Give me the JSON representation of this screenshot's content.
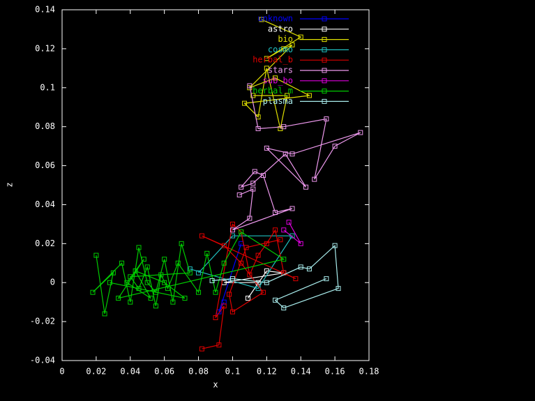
{
  "chart_data": {
    "type": "line",
    "xlabel": "x",
    "ylabel": "z",
    "xlim": [
      0,
      0.18
    ],
    "xticks": [
      0,
      0.02,
      0.04,
      0.06,
      0.08,
      0.1,
      0.12,
      0.14,
      0.16,
      0.18
    ],
    "ylim": [
      -0.04,
      0.14
    ],
    "yticks": [
      -0.04,
      -0.02,
      0,
      0.02,
      0.04,
      0.06,
      0.08,
      0.1,
      0.12,
      0.14
    ],
    "grid": false,
    "legend": "top-right",
    "series": [
      {
        "name": "unknown",
        "color": "#0000ff",
        "x": [
          0.095,
          0.092,
          0.105
        ],
        "values": [
          -0.01,
          -0.015,
          0.02
        ]
      },
      {
        "name": "astro",
        "color": "#ffffff",
        "x": [
          0.109,
          0.12,
          0.13,
          0.095,
          0.115
        ],
        "values": [
          -0.008,
          0.006,
          0.005,
          0.0,
          0.0
        ]
      },
      {
        "name": "bio",
        "color": "#e0e000",
        "x": [
          0.117,
          0.14,
          0.12,
          0.13,
          0.135,
          0.11,
          0.125,
          0.145,
          0.107,
          0.115,
          0.12,
          0.128,
          0.132,
          0.112
        ],
        "values": [
          0.135,
          0.126,
          0.115,
          0.12,
          0.122,
          0.1,
          0.105,
          0.096,
          0.092,
          0.085,
          0.11,
          0.079,
          0.096,
          0.096
        ]
      },
      {
        "name": "cosmo",
        "color": "#20c0c0",
        "x": [
          0.08,
          0.1,
          0.135,
          0.115,
          0.075
        ],
        "values": [
          0.005,
          0.024,
          0.024,
          -0.003,
          0.007
        ]
      },
      {
        "name": "herbal_b",
        "color": "#e00000",
        "x": [
          0.082,
          0.092,
          0.095,
          0.09,
          0.1,
          0.105,
          0.11,
          0.115,
          0.12,
          0.125,
          0.13,
          0.137,
          0.082,
          0.095,
          0.105,
          0.118,
          0.1,
          0.098,
          0.108,
          0.128
        ],
        "values": [
          -0.034,
          -0.032,
          -0.012,
          -0.018,
          0.03,
          0.026,
          0.004,
          0.014,
          0.02,
          0.027,
          0.005,
          0.002,
          0.024,
          0.019,
          0.01,
          -0.005,
          -0.015,
          -0.006,
          0.018,
          0.022
        ]
      },
      {
        "name": "stars",
        "color": "#ee99ee",
        "x": [
          0.11,
          0.115,
          0.13,
          0.155,
          0.148,
          0.16,
          0.175,
          0.135,
          0.12,
          0.143,
          0.131,
          0.112,
          0.105,
          0.113,
          0.118,
          0.125,
          0.135,
          0.1,
          0.11,
          0.112,
          0.104
        ],
        "values": [
          0.101,
          0.079,
          0.08,
          0.084,
          0.053,
          0.07,
          0.077,
          0.066,
          0.069,
          0.049,
          0.066,
          0.051,
          0.049,
          0.057,
          0.055,
          0.036,
          0.038,
          0.027,
          0.033,
          0.048,
          0.045
        ]
      },
      {
        "name": "sub_bo",
        "color": "#dd00dd",
        "x": [
          0.133,
          0.14,
          0.13
        ],
        "values": [
          0.031,
          0.02,
          0.027
        ]
      },
      {
        "name": "herbal_m",
        "color": "#00cc00",
        "x": [
          0.02,
          0.025,
          0.03,
          0.018,
          0.035,
          0.04,
          0.045,
          0.05,
          0.055,
          0.06,
          0.065,
          0.07,
          0.075,
          0.04,
          0.045,
          0.05,
          0.055,
          0.058,
          0.062,
          0.068,
          0.08,
          0.085,
          0.09,
          0.095,
          0.105,
          0.13,
          0.033,
          0.048,
          0.038,
          0.052,
          0.043,
          0.06,
          0.072,
          0.028
        ],
        "values": [
          0.014,
          -0.016,
          0.005,
          -0.005,
          0.01,
          -0.01,
          0.018,
          0.0,
          -0.005,
          0.012,
          -0.01,
          0.02,
          0.005,
          0.003,
          -0.003,
          0.008,
          -0.012,
          0.004,
          -0.003,
          0.01,
          -0.005,
          0.015,
          -0.005,
          0.01,
          0.026,
          0.012,
          -0.008,
          0.012,
          0.0,
          -0.008,
          0.006,
          0.0,
          -0.008,
          0.0
        ]
      },
      {
        "name": "plasma",
        "color": "#aaeeee",
        "x": [
          0.088,
          0.1,
          0.12,
          0.14,
          0.145,
          0.16,
          0.162,
          0.13,
          0.125,
          0.155
        ],
        "values": [
          0.001,
          0.002,
          0.0,
          0.008,
          0.007,
          0.019,
          -0.003,
          -0.013,
          -0.009,
          0.002
        ]
      }
    ]
  }
}
